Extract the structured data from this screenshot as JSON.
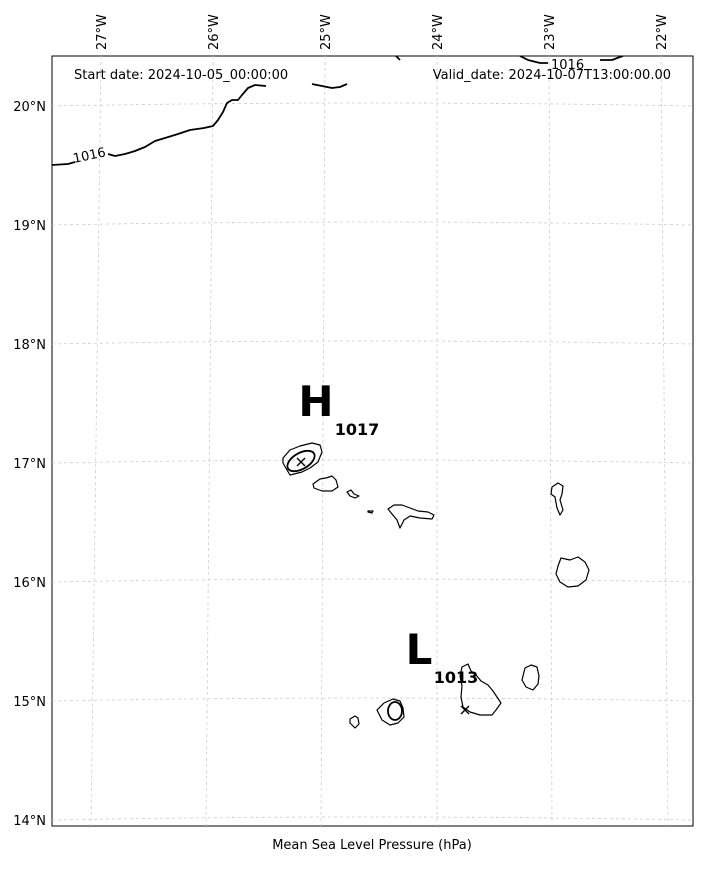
{
  "map": {
    "start_date": "Start date: 2024-10-05_00:00:00",
    "valid_date": "Valid_date: 2024-10-07T13:00:00.00",
    "caption": "Mean Sea Level Pressure (hPa)",
    "lon_labels": [
      "27°W",
      "26°W",
      "25°W",
      "24°W",
      "23°W",
      "22°W"
    ],
    "lat_labels": [
      "20°N",
      "19°N",
      "18°N",
      "17°N",
      "16°N",
      "15°N",
      "14°N"
    ],
    "high": {
      "letter": "H",
      "value": "1017"
    },
    "low": {
      "letter": "L",
      "value": "1013"
    },
    "isobar_labels": [
      "1016",
      "1016"
    ],
    "isobar_color": "#000000",
    "grid_color": "#cccccc"
  }
}
